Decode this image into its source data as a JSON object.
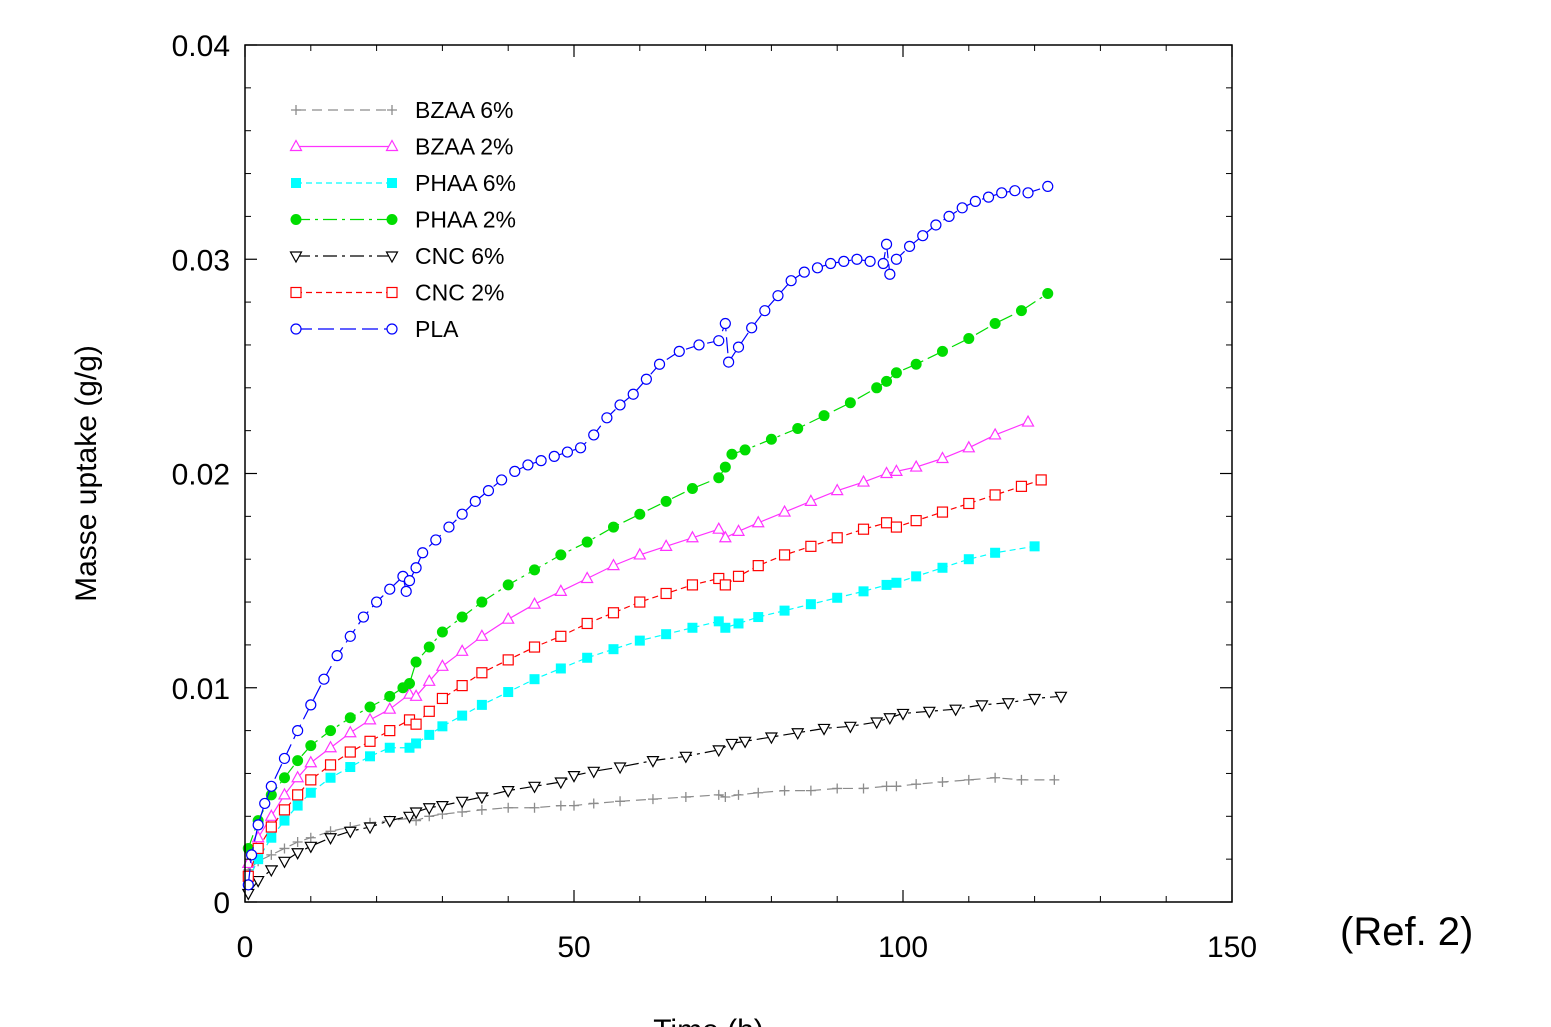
{
  "chart_data": {
    "type": "scatter",
    "title": "",
    "xlabel": "Time (h)",
    "ylabel": "Masse uptake (g/g)",
    "annotation": "(Ref. 2)",
    "xlim": [
      0,
      150
    ],
    "ylim": [
      0,
      0.04
    ],
    "xticks": [
      0,
      50,
      100,
      150
    ],
    "yticks": [
      0,
      0.01,
      0.02,
      0.03,
      0.04
    ],
    "xtick_labels": [
      "0",
      "50",
      "100",
      "150"
    ],
    "ytick_labels": [
      "0",
      "0.01",
      "0.02",
      "0.03",
      "0.04"
    ],
    "grid": false,
    "legend_position": "top-left",
    "series": [
      {
        "name": "BZAA 6%",
        "color": "#8c8c8c",
        "marker": "plus",
        "dash": "10,6",
        "x": [
          0.5,
          2,
          4,
          6,
          8,
          10,
          13,
          16,
          19,
          22,
          25,
          26,
          28,
          30,
          33,
          36,
          40,
          44,
          48,
          50,
          53,
          57,
          62,
          67,
          72,
          73,
          75,
          78,
          82,
          86,
          90,
          94,
          97.5,
          99,
          102,
          106,
          110,
          114,
          118,
          123
        ],
        "y": [
          0.0015,
          0.0019,
          0.0022,
          0.0025,
          0.0028,
          0.003,
          0.0033,
          0.0035,
          0.0037,
          0.0038,
          0.0039,
          0.0038,
          0.004,
          0.0041,
          0.0042,
          0.0043,
          0.0044,
          0.0044,
          0.0045,
          0.0045,
          0.0046,
          0.0047,
          0.0048,
          0.0049,
          0.005,
          0.0049,
          0.005,
          0.0051,
          0.0052,
          0.0052,
          0.0053,
          0.0053,
          0.0054,
          0.0054,
          0.0055,
          0.0056,
          0.0057,
          0.0058,
          0.0057,
          0.0057
        ]
      },
      {
        "name": "BZAA 2%",
        "color": "#ff33ff",
        "marker": "triangle-up",
        "dash": "",
        "x": [
          0.5,
          2,
          4,
          6,
          8,
          10,
          13,
          16,
          19,
          22,
          25,
          26,
          28,
          30,
          33,
          36,
          40,
          44,
          48,
          52,
          56,
          60,
          64,
          68,
          72,
          73,
          75,
          78,
          82,
          86,
          90,
          94,
          97.5,
          99,
          102,
          106,
          110,
          114,
          119
        ],
        "y": [
          0.0018,
          0.003,
          0.004,
          0.005,
          0.0058,
          0.0065,
          0.0072,
          0.0079,
          0.0085,
          0.009,
          0.0097,
          0.0096,
          0.0103,
          0.011,
          0.0117,
          0.0124,
          0.0132,
          0.0139,
          0.0145,
          0.0151,
          0.0157,
          0.0162,
          0.0166,
          0.017,
          0.0174,
          0.017,
          0.0173,
          0.0177,
          0.0182,
          0.0187,
          0.0192,
          0.0196,
          0.02,
          0.0201,
          0.0203,
          0.0207,
          0.0212,
          0.0218,
          0.0224
        ]
      },
      {
        "name": "PHAA 6%",
        "color": "#00ffff",
        "marker": "square-filled",
        "dash": "6,4",
        "x": [
          0.5,
          2,
          4,
          6,
          8,
          10,
          13,
          16,
          19,
          22,
          25,
          26,
          28,
          30,
          33,
          36,
          40,
          44,
          48,
          52,
          56,
          60,
          64,
          68,
          72,
          73,
          75,
          78,
          82,
          86,
          90,
          94,
          97.5,
          99,
          102,
          106,
          110,
          114,
          120
        ],
        "y": [
          0.001,
          0.002,
          0.003,
          0.0038,
          0.0045,
          0.0051,
          0.0058,
          0.0063,
          0.0068,
          0.0072,
          0.0072,
          0.0074,
          0.0078,
          0.0082,
          0.0087,
          0.0092,
          0.0098,
          0.0104,
          0.0109,
          0.0114,
          0.0118,
          0.0122,
          0.0125,
          0.0128,
          0.0131,
          0.0128,
          0.013,
          0.0133,
          0.0136,
          0.0139,
          0.0142,
          0.0145,
          0.0148,
          0.0149,
          0.0152,
          0.0156,
          0.016,
          0.0163,
          0.0166
        ]
      },
      {
        "name": "PHAA 2%",
        "color": "#00dd00",
        "marker": "circle-filled",
        "dash": "14,5,3,5",
        "x": [
          0.5,
          2,
          4,
          6,
          8,
          10,
          13,
          16,
          19,
          22,
          24,
          25,
          26,
          28,
          30,
          33,
          36,
          40,
          44,
          48,
          52,
          56,
          60,
          64,
          68,
          72,
          73,
          74,
          76,
          80,
          84,
          88,
          92,
          96,
          97.5,
          99,
          102,
          106,
          110,
          114,
          118,
          122
        ],
        "y": [
          0.0025,
          0.0038,
          0.005,
          0.0058,
          0.0066,
          0.0073,
          0.008,
          0.0086,
          0.0091,
          0.0096,
          0.01,
          0.0102,
          0.0112,
          0.0119,
          0.0126,
          0.0133,
          0.014,
          0.0148,
          0.0155,
          0.0162,
          0.0168,
          0.0175,
          0.0181,
          0.0187,
          0.0193,
          0.0198,
          0.0203,
          0.0209,
          0.0211,
          0.0216,
          0.0221,
          0.0227,
          0.0233,
          0.024,
          0.0243,
          0.0247,
          0.0251,
          0.0257,
          0.0263,
          0.027,
          0.0276,
          0.0284
        ]
      },
      {
        "name": "CNC 6%",
        "color": "#000000",
        "marker": "triangle-down",
        "dash": "14,5,3,5",
        "x": [
          0.5,
          2,
          4,
          6,
          8,
          10,
          13,
          16,
          19,
          22,
          25,
          26,
          28,
          30,
          33,
          36,
          40,
          44,
          48,
          50,
          53,
          57,
          62,
          67,
          72,
          74,
          76,
          80,
          84,
          88,
          92,
          96,
          98,
          100,
          104,
          108,
          112,
          116,
          120,
          124
        ],
        "y": [
          0.0004,
          0.001,
          0.0015,
          0.0019,
          0.0023,
          0.0026,
          0.003,
          0.0033,
          0.0035,
          0.0038,
          0.004,
          0.0042,
          0.0044,
          0.0045,
          0.0047,
          0.0049,
          0.0052,
          0.0054,
          0.0056,
          0.0059,
          0.0061,
          0.0063,
          0.0066,
          0.0068,
          0.0071,
          0.0074,
          0.0075,
          0.0077,
          0.0079,
          0.0081,
          0.0082,
          0.0084,
          0.0086,
          0.0088,
          0.0089,
          0.009,
          0.0092,
          0.0093,
          0.0095,
          0.0096
        ]
      },
      {
        "name": "CNC 2%",
        "color": "#ff0000",
        "marker": "square-open",
        "dash": "6,4",
        "x": [
          0.5,
          2,
          4,
          6,
          8,
          10,
          13,
          16,
          19,
          22,
          25,
          26,
          28,
          30,
          33,
          36,
          40,
          44,
          48,
          52,
          56,
          60,
          64,
          68,
          72,
          73,
          75,
          78,
          82,
          86,
          90,
          94,
          97.5,
          99,
          102,
          106,
          110,
          114,
          118,
          121
        ],
        "y": [
          0.0012,
          0.0025,
          0.0035,
          0.0043,
          0.005,
          0.0057,
          0.0064,
          0.007,
          0.0075,
          0.008,
          0.0085,
          0.0083,
          0.0089,
          0.0095,
          0.0101,
          0.0107,
          0.0113,
          0.0119,
          0.0124,
          0.013,
          0.0135,
          0.014,
          0.0144,
          0.0148,
          0.0151,
          0.0148,
          0.0152,
          0.0157,
          0.0162,
          0.0166,
          0.017,
          0.0174,
          0.0177,
          0.0175,
          0.0178,
          0.0182,
          0.0186,
          0.019,
          0.0194,
          0.0197
        ]
      },
      {
        "name": "PLA",
        "color": "#0000ff",
        "marker": "circle-open",
        "dash": "16,6",
        "x": [
          0.5,
          1,
          2,
          3,
          4,
          6,
          8,
          10,
          12,
          14,
          16,
          18,
          20,
          22,
          24,
          24.5,
          25,
          26,
          27,
          29,
          31,
          33,
          35,
          37,
          39,
          41,
          43,
          45,
          47,
          49,
          51,
          53,
          55,
          57,
          59,
          61,
          63,
          66,
          69,
          72,
          73,
          73.5,
          75,
          77,
          79,
          81,
          83,
          85,
          87,
          89,
          91,
          93,
          95,
          97,
          97.5,
          98,
          99,
          101,
          103,
          105,
          107,
          109,
          111,
          113,
          115,
          117,
          119,
          122
        ],
        "y": [
          0.0008,
          0.0022,
          0.0036,
          0.0046,
          0.0054,
          0.0067,
          0.008,
          0.0092,
          0.0104,
          0.0115,
          0.0124,
          0.0133,
          0.014,
          0.0146,
          0.0152,
          0.0145,
          0.015,
          0.0156,
          0.0163,
          0.0169,
          0.0175,
          0.0181,
          0.0187,
          0.0192,
          0.0197,
          0.0201,
          0.0204,
          0.0206,
          0.0208,
          0.021,
          0.0212,
          0.0218,
          0.0226,
          0.0232,
          0.0237,
          0.0244,
          0.0251,
          0.0257,
          0.026,
          0.0262,
          0.027,
          0.0252,
          0.0259,
          0.0268,
          0.0276,
          0.0283,
          0.029,
          0.0294,
          0.0296,
          0.0298,
          0.0299,
          0.03,
          0.0299,
          0.0298,
          0.0307,
          0.0293,
          0.03,
          0.0306,
          0.0311,
          0.0316,
          0.032,
          0.0324,
          0.0327,
          0.0329,
          0.0331,
          0.0332,
          0.0331,
          0.0334
        ]
      }
    ]
  }
}
